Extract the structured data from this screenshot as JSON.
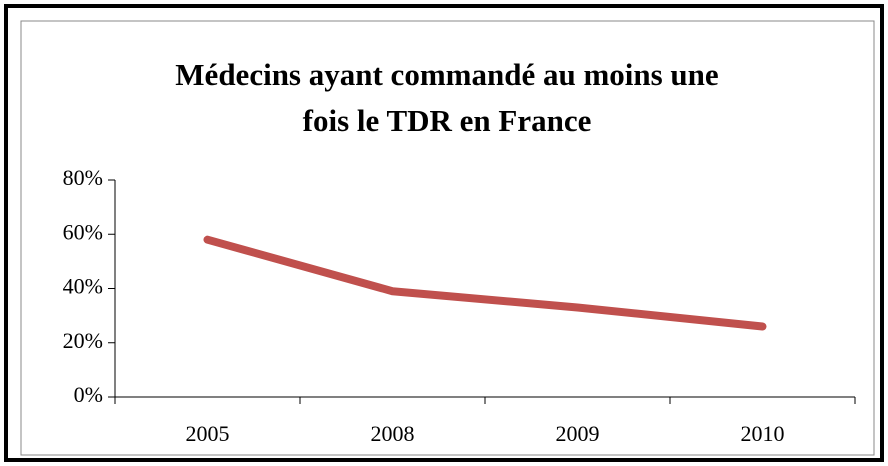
{
  "chart_data": {
    "type": "line",
    "title": [
      "Médecins ayant commandé au moins une",
      "fois le TDR en France"
    ],
    "categories": [
      "2005",
      "2008",
      "2009",
      "2010"
    ],
    "series": [
      {
        "name": "Médecins",
        "color": "#c0504d",
        "values": [
          58,
          39,
          33,
          26
        ]
      }
    ],
    "ylim": [
      0,
      80
    ],
    "yticks": [
      {
        "value": 0,
        "label": "0%"
      },
      {
        "value": 20,
        "label": "20%"
      },
      {
        "value": 40,
        "label": "40%"
      },
      {
        "value": 60,
        "label": "60%"
      },
      {
        "value": 80,
        "label": "80%"
      }
    ],
    "grid": false,
    "legend": false
  }
}
